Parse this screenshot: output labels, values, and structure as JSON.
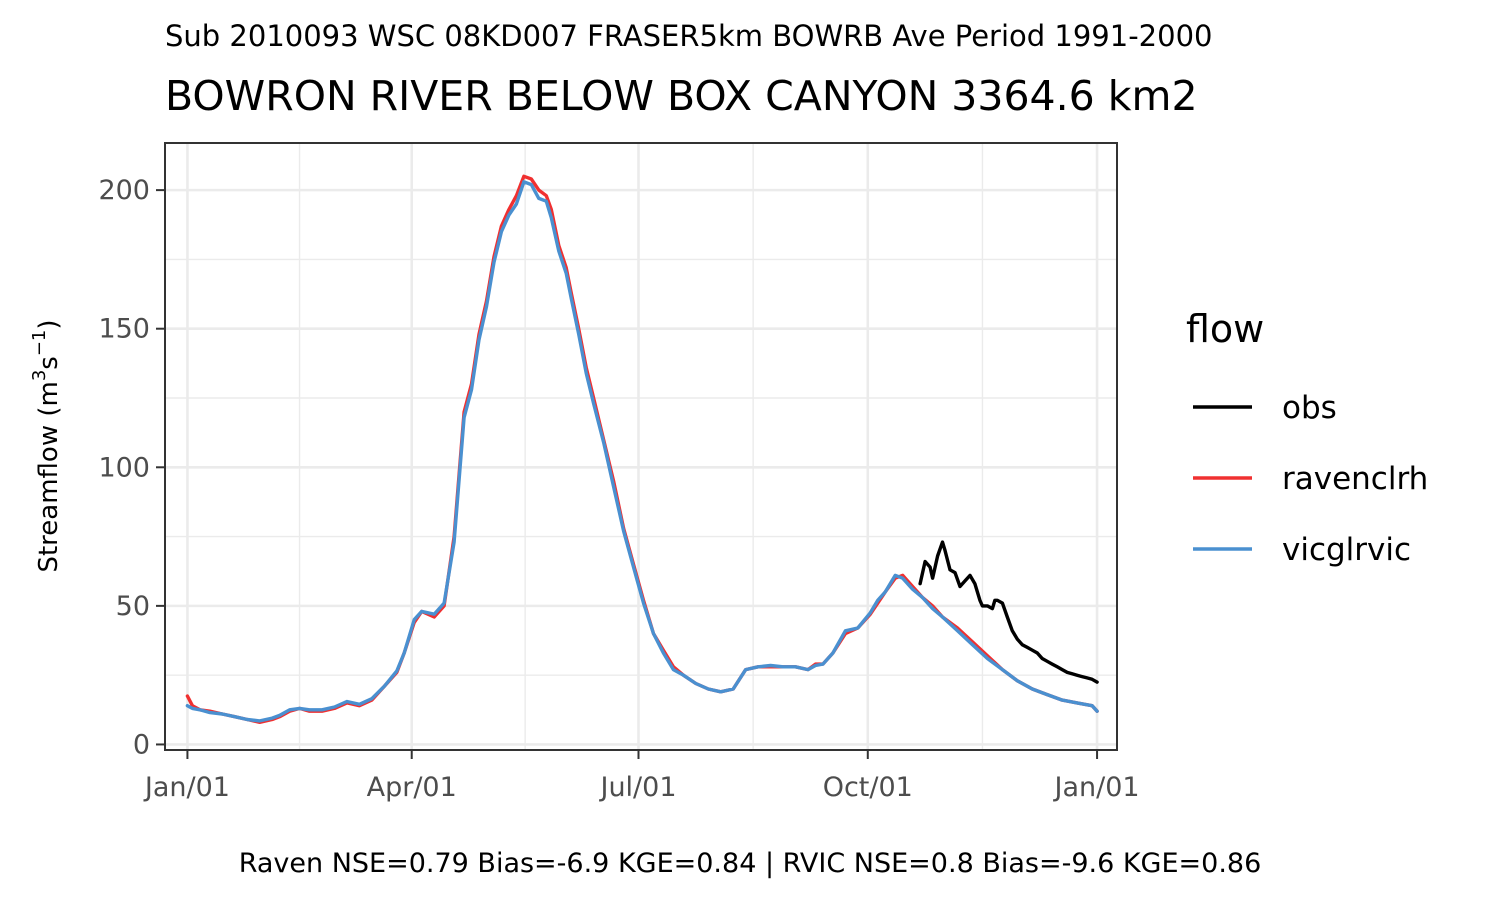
{
  "chart_data": {
    "type": "line",
    "subtitle": "Sub 2010093 WSC 08KD007 FRASER5km BOWRB Ave Period 1991-2000",
    "title": "BOWRON RIVER BELOW BOX CANYON 3364.6 km2",
    "ylabel_main": "Streamflow (m",
    "ylabel_sup1": "3",
    "ylabel_mid": "s",
    "ylabel_sup2": "−1",
    "ylabel_end": ")",
    "x_ticks": [
      {
        "doy": 1,
        "label": "Jan/01"
      },
      {
        "doy": 91,
        "label": "Apr/01"
      },
      {
        "doy": 182,
        "label": "Jul/01"
      },
      {
        "doy": 274,
        "label": "Oct/01"
      },
      {
        "doy": 366,
        "label": "Jan/01"
      }
    ],
    "x_minor": [
      46,
      136.5,
      228,
      320
    ],
    "y_ticks": [
      0,
      50,
      100,
      150,
      200
    ],
    "y_minor": [
      25,
      75,
      125,
      175
    ],
    "xlim": [
      -8,
      374
    ],
    "ylim": [
      -2,
      217
    ],
    "legend": {
      "title": "flow",
      "placement": "right",
      "items": [
        {
          "name": "obs",
          "color": "#000000"
        },
        {
          "name": "ravenclrh",
          "color": "#f03030"
        },
        {
          "name": "vicglrvic",
          "color": "#4a90d0"
        }
      ]
    },
    "series": [
      {
        "name": "obs",
        "color": "#000000",
        "x": [
          295,
          297,
          299,
          300,
          302,
          304,
          305,
          307,
          309,
          311,
          313,
          315,
          317,
          318,
          319,
          320,
          322,
          324,
          325,
          326,
          328,
          330,
          332,
          334,
          336,
          338,
          340,
          342,
          344,
          346,
          348,
          350,
          352,
          354,
          356,
          358,
          360,
          362,
          364,
          366
        ],
        "y": [
          58,
          66,
          64,
          60,
          68,
          73,
          70,
          63,
          62,
          57,
          59,
          61,
          58,
          55,
          52,
          50,
          50,
          49,
          52,
          52,
          51,
          46,
          41,
          38,
          36,
          35,
          34,
          33,
          31,
          30,
          29,
          28,
          27,
          26,
          25.5,
          25,
          24.5,
          24,
          23.5,
          22.5
        ]
      },
      {
        "name": "ravenclrh",
        "color": "#f03030",
        "x": [
          1,
          3,
          6,
          10,
          15,
          20,
          25,
          30,
          35,
          38,
          42,
          46,
          50,
          55,
          60,
          65,
          70,
          75,
          80,
          85,
          88,
          92,
          95,
          100,
          104,
          108,
          112,
          115,
          118,
          121,
          124,
          127,
          130,
          133,
          136,
          139,
          142,
          145,
          147,
          150,
          153,
          155,
          158,
          161,
          164,
          168,
          172,
          176,
          180,
          184,
          188,
          192,
          196,
          200,
          205,
          210,
          215,
          220,
          225,
          230,
          235,
          240,
          245,
          250,
          253,
          256,
          260,
          265,
          270,
          275,
          278,
          281,
          285,
          288,
          292,
          296,
          300,
          304,
          310,
          316,
          322,
          328,
          334,
          340,
          346,
          352,
          358,
          364,
          366
        ],
        "y": [
          17.5,
          14,
          12.5,
          12,
          11,
          10,
          9,
          8,
          9,
          10,
          12,
          13,
          12,
          12,
          13,
          15,
          14,
          16,
          21,
          26,
          33,
          44,
          48,
          46,
          50,
          75,
          120,
          130,
          148,
          160,
          176,
          187,
          193,
          198,
          205,
          204,
          200,
          198,
          193,
          180,
          172,
          163,
          150,
          136,
          125,
          110,
          95,
          78,
          65,
          52,
          40,
          34,
          28,
          25,
          22,
          20,
          19,
          20,
          27,
          28,
          28,
          28,
          28,
          27,
          29,
          29,
          33,
          40,
          42,
          47,
          51,
          55,
          60,
          61,
          57,
          53,
          50,
          46,
          42,
          37,
          32,
          27,
          23,
          20,
          18,
          16,
          15,
          14,
          12
        ]
      },
      {
        "name": "vicglrvic",
        "color": "#4a90d0",
        "x": [
          1,
          3,
          6,
          10,
          15,
          20,
          25,
          30,
          35,
          38,
          42,
          46,
          50,
          55,
          60,
          65,
          70,
          75,
          80,
          85,
          88,
          92,
          95,
          100,
          104,
          108,
          112,
          115,
          118,
          121,
          124,
          127,
          130,
          133,
          136,
          139,
          142,
          145,
          147,
          150,
          153,
          155,
          158,
          161,
          164,
          168,
          172,
          176,
          180,
          184,
          188,
          192,
          196,
          200,
          205,
          210,
          215,
          220,
          225,
          230,
          235,
          240,
          245,
          250,
          253,
          256,
          260,
          265,
          270,
          275,
          278,
          281,
          285,
          288,
          292,
          296,
          300,
          304,
          310,
          316,
          322,
          328,
          334,
          340,
          346,
          352,
          358,
          364,
          366
        ],
        "y": [
          14,
          13,
          12.5,
          11.5,
          11,
          10,
          9,
          8.5,
          9.5,
          10.5,
          12.5,
          13,
          12.5,
          12.5,
          13.5,
          15.5,
          14.5,
          16.5,
          21,
          26.5,
          33,
          45,
          48,
          47,
          51,
          73,
          118,
          128,
          146,
          158,
          174,
          185,
          191,
          195,
          203,
          202,
          197,
          196,
          190,
          178,
          170,
          161,
          148,
          134,
          123,
          109,
          93,
          77,
          64,
          51,
          40,
          33,
          27,
          25,
          22,
          20,
          19,
          20,
          27,
          28,
          28.5,
          28,
          28,
          27,
          28.5,
          29,
          33,
          41,
          42,
          47.5,
          52,
          55,
          61,
          60,
          56,
          53,
          49,
          46,
          41,
          36,
          31,
          27,
          23,
          20,
          18,
          16,
          15,
          14,
          12
        ]
      }
    ],
    "footer": "Raven NSE=0.79 Bias=-6.9 KGE=0.84 | RVIC NSE=0.8 Bias=-9.6 KGE=0.86",
    "grid": true
  }
}
